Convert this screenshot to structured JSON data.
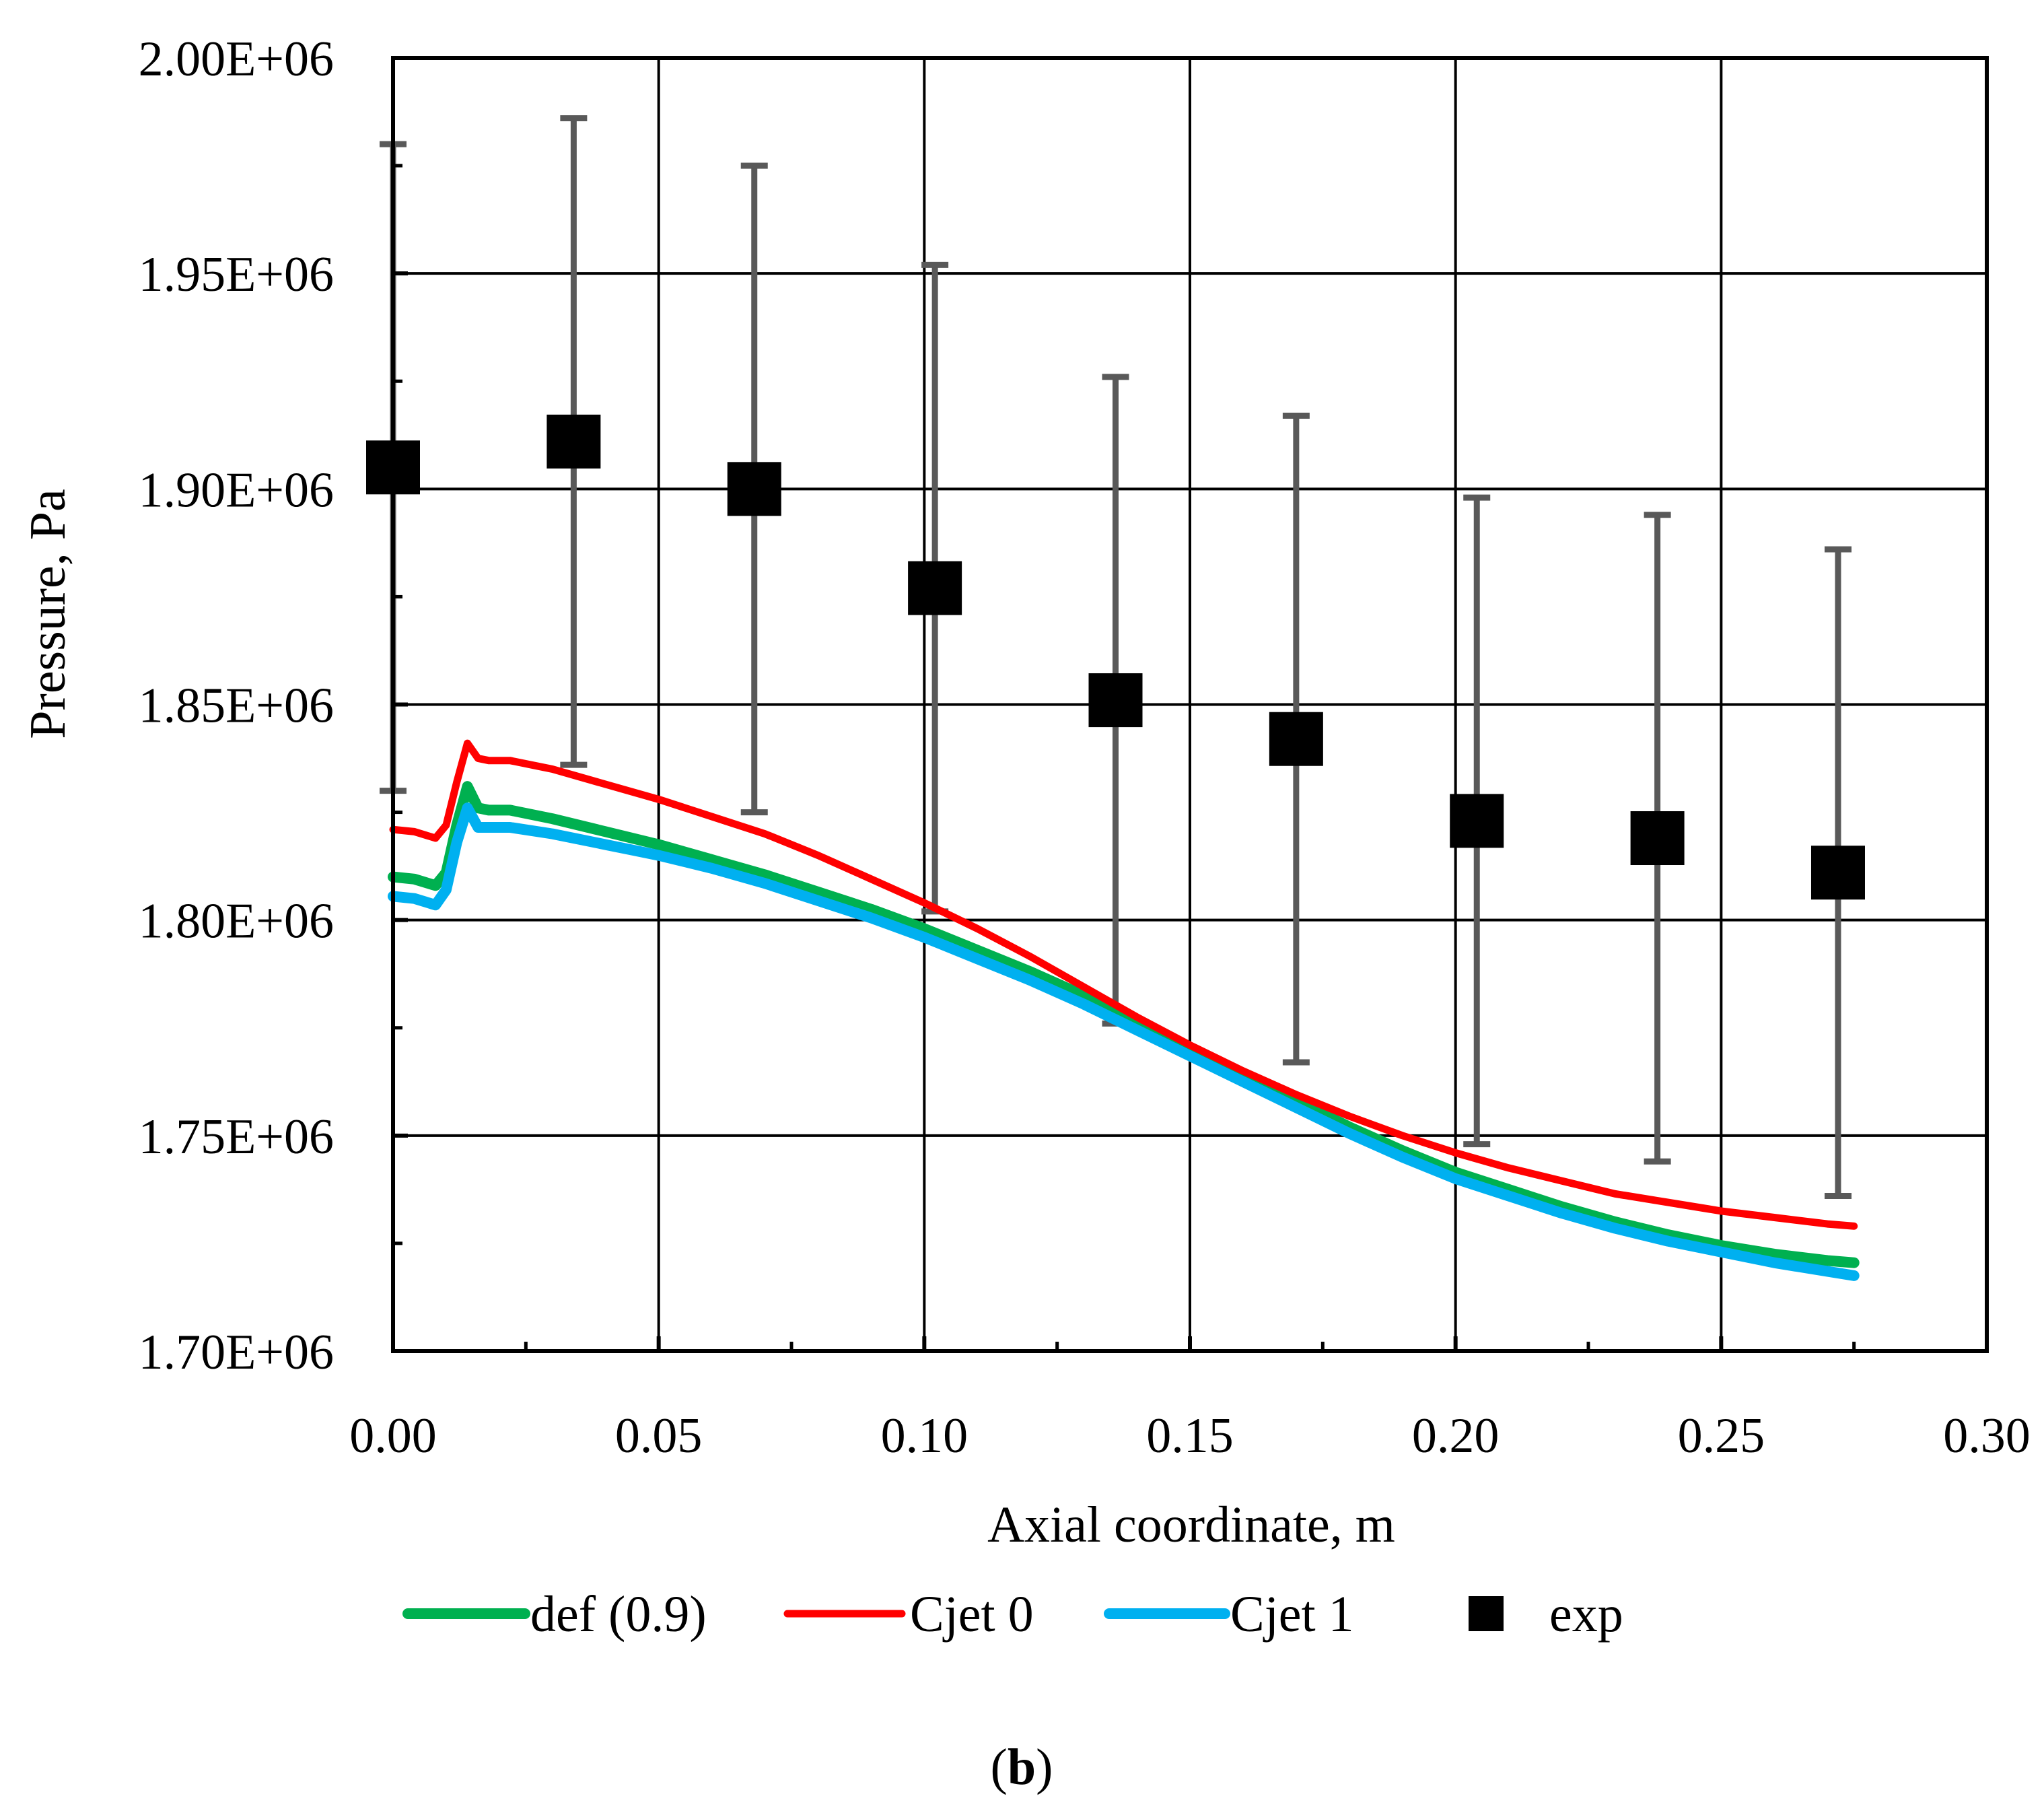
{
  "chart_data": {
    "type": "line",
    "title": "",
    "xlabel": "Axial coordinate, m",
    "ylabel": "Pressure, Pa",
    "xlim": [
      0,
      0.3
    ],
    "ylim": [
      1700000,
      2000000
    ],
    "x_ticks": [
      "0.00",
      "0.05",
      "0.10",
      "0.15",
      "0.20",
      "0.25",
      "0.30"
    ],
    "x_tick_values": [
      0,
      0.05,
      0.1,
      0.15,
      0.2,
      0.25,
      0.3
    ],
    "y_ticks": [
      "1.70E+06",
      "1.75E+06",
      "1.80E+06",
      "1.85E+06",
      "1.90E+06",
      "1.95E+06",
      "2.00E+06"
    ],
    "y_tick_values": [
      1700000,
      1750000,
      1800000,
      1850000,
      1900000,
      1950000,
      2000000
    ],
    "grid": true,
    "legend_position": "bottom",
    "caption": {
      "open": "(",
      "letter": "b",
      "close": ")"
    },
    "series": [
      {
        "name": "def (0.9)",
        "kind": "line",
        "color": "#00b050",
        "x": [
          0,
          0.004,
          0.008,
          0.01,
          0.012,
          0.014,
          0.016,
          0.018,
          0.022,
          0.03,
          0.04,
          0.05,
          0.06,
          0.07,
          0.08,
          0.09,
          0.1,
          0.11,
          0.12,
          0.13,
          0.14,
          0.15,
          0.16,
          0.17,
          0.18,
          0.19,
          0.2,
          0.21,
          0.22,
          0.23,
          0.24,
          0.25,
          0.26,
          0.27,
          0.275
        ],
        "y": [
          1810000,
          1809500,
          1808000,
          1811000,
          1822000,
          1831000,
          1826000,
          1825500,
          1825500,
          1823500,
          1820500,
          1817500,
          1814000,
          1810500,
          1806500,
          1802500,
          1798000,
          1793000,
          1788000,
          1782500,
          1776500,
          1770000,
          1764000,
          1758000,
          1752000,
          1746500,
          1741500,
          1737500,
          1733500,
          1730000,
          1727000,
          1724500,
          1722500,
          1721000,
          1720500
        ]
      },
      {
        "name": "Cjet 0",
        "kind": "line",
        "color": "#ff0000",
        "x": [
          0,
          0.004,
          0.008,
          0.01,
          0.012,
          0.014,
          0.016,
          0.018,
          0.022,
          0.03,
          0.04,
          0.05,
          0.06,
          0.07,
          0.08,
          0.09,
          0.1,
          0.11,
          0.12,
          0.13,
          0.14,
          0.15,
          0.16,
          0.17,
          0.18,
          0.19,
          0.2,
          0.21,
          0.22,
          0.23,
          0.24,
          0.25,
          0.26,
          0.27,
          0.275
        ],
        "y": [
          1821000,
          1820500,
          1819000,
          1822000,
          1832000,
          1841000,
          1837500,
          1837000,
          1837000,
          1835000,
          1831500,
          1828000,
          1824000,
          1820000,
          1815000,
          1809500,
          1804000,
          1798000,
          1791500,
          1784500,
          1777500,
          1771000,
          1765000,
          1759500,
          1754500,
          1750000,
          1746000,
          1742500,
          1739500,
          1736500,
          1734500,
          1732500,
          1731000,
          1729500,
          1729000
        ]
      },
      {
        "name": "Cjet 1",
        "kind": "line",
        "color": "#00b0f0",
        "x": [
          0,
          0.004,
          0.008,
          0.01,
          0.012,
          0.014,
          0.016,
          0.018,
          0.022,
          0.03,
          0.04,
          0.05,
          0.06,
          0.07,
          0.08,
          0.09,
          0.1,
          0.11,
          0.12,
          0.13,
          0.14,
          0.15,
          0.16,
          0.17,
          0.18,
          0.19,
          0.2,
          0.21,
          0.22,
          0.23,
          0.24,
          0.25,
          0.26,
          0.27,
          0.275
        ],
        "y": [
          1805500,
          1805000,
          1803500,
          1807000,
          1818000,
          1826000,
          1821500,
          1821500,
          1821500,
          1820000,
          1817500,
          1815000,
          1812000,
          1808500,
          1804500,
          1800500,
          1796000,
          1791000,
          1786000,
          1780500,
          1774500,
          1768500,
          1762500,
          1756500,
          1750500,
          1745000,
          1740000,
          1736000,
          1732000,
          1728500,
          1725500,
          1723000,
          1720500,
          1718500,
          1717500
        ]
      },
      {
        "name": "exp",
        "kind": "scatter",
        "color": "#000000",
        "marker": "square",
        "errorbar_color": "#595959",
        "x": [
          0.0,
          0.034,
          0.068,
          0.102,
          0.136,
          0.17,
          0.204,
          0.238,
          0.272
        ],
        "y": [
          1905000,
          1911000,
          1900000,
          1877000,
          1851000,
          1842000,
          1823000,
          1819000,
          1811000
        ],
        "y_err": [
          75000,
          75000,
          75000,
          75000,
          75000,
          75000,
          75000,
          75000,
          75000
        ]
      }
    ]
  }
}
